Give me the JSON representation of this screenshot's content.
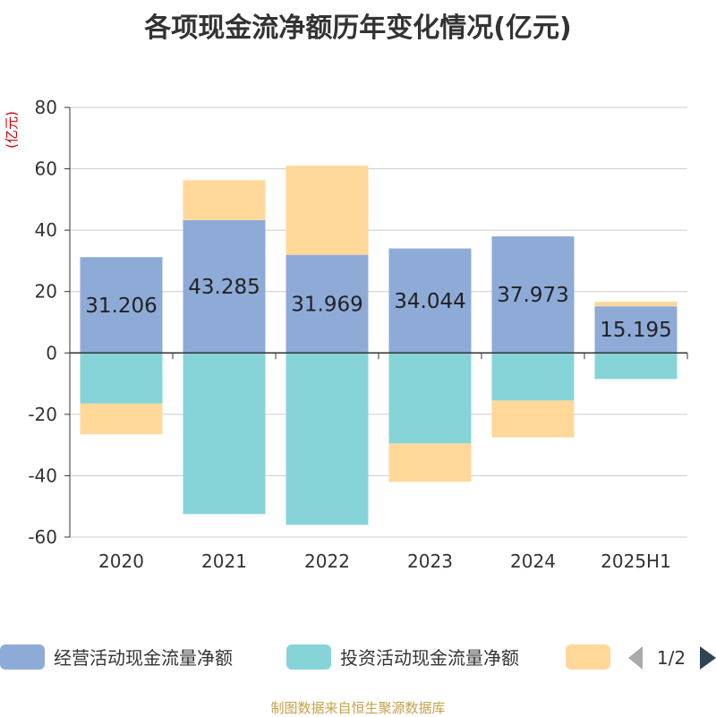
{
  "title": "各项现金流净额历年变化情况(亿元)",
  "footer": "制图数据来自恒生聚源数据库",
  "chart_data": {
    "type": "bar",
    "stacked": true,
    "title": "各项现金流净额历年变化情况(亿元)",
    "ylabel": "(亿元)",
    "xlabel": "",
    "ylim": [
      -60,
      80
    ],
    "yticks": [
      80,
      60,
      40,
      20,
      0,
      -20,
      -40,
      -60
    ],
    "grid": true,
    "categories": [
      "2020",
      "2021",
      "2022",
      "2023",
      "2024",
      "2025H1"
    ],
    "series": [
      {
        "name": "经营活动现金流量净额",
        "color": "#8eabd8",
        "values": [
          31.206,
          43.285,
          31.969,
          34.044,
          37.973,
          15.195
        ],
        "labels": [
          "31.206",
          "43.285",
          "31.969",
          "34.044",
          "37.973",
          "15.195"
        ]
      },
      {
        "name": "投资活动现金流量净额",
        "color": "#86d4d8",
        "values": [
          -16.5,
          -52.5,
          -56.0,
          -29.5,
          -15.5,
          -8.5
        ]
      },
      {
        "name": "",
        "color": "#ffd89a",
        "values": [
          -10.0,
          13.0,
          29.0,
          -12.5,
          -12.0,
          1.5
        ]
      }
    ],
    "legend": {
      "position": "bottom",
      "page": "1/2"
    }
  }
}
